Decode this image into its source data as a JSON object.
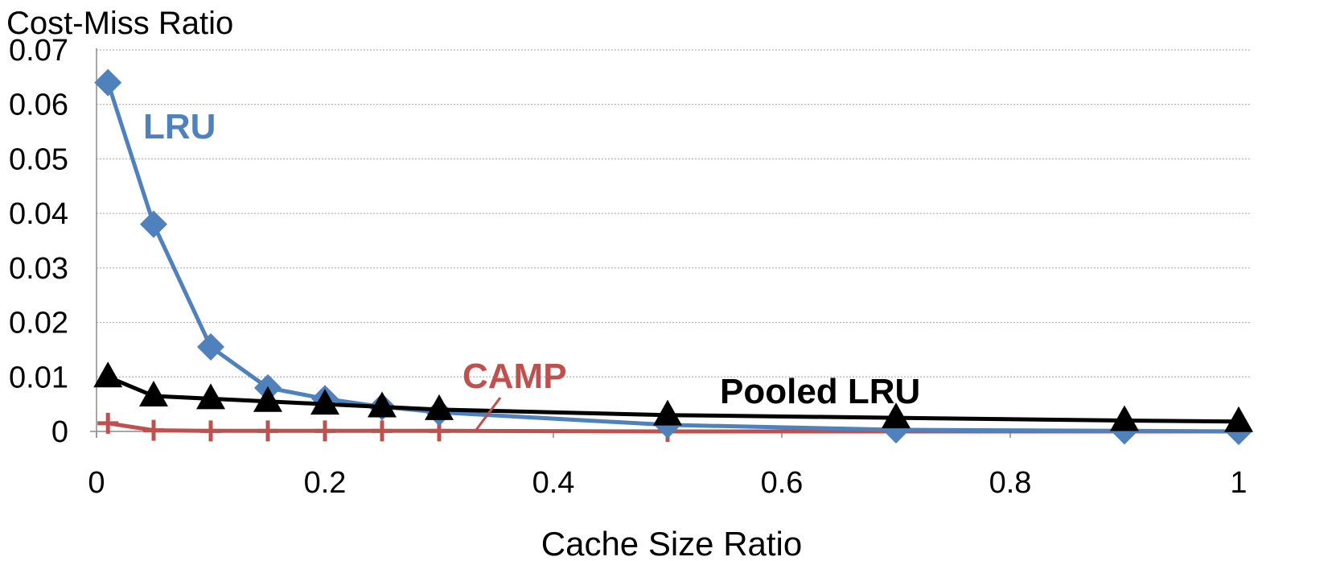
{
  "chart_data": {
    "type": "line",
    "title": "Cost-Miss Ratio",
    "xlabel": "Cache Size Ratio",
    "ylabel": "",
    "xlim": [
      0,
      1
    ],
    "ylim": [
      0,
      0.07
    ],
    "x_ticks": [
      "0",
      "0.2",
      "0.4",
      "0.6",
      "0.8",
      "1"
    ],
    "y_ticks": [
      "0",
      "0.01",
      "0.02",
      "0.03",
      "0.04",
      "0.05",
      "0.06",
      "0.07"
    ],
    "grid": true,
    "x": [
      0.01,
      0.05,
      0.1,
      0.15,
      0.2,
      0.25,
      0.3,
      0.5,
      0.7,
      0.9,
      1.0
    ],
    "series": [
      {
        "name": "LRU",
        "color": "#4f81bd",
        "marker": "diamond",
        "values": [
          0.064,
          0.038,
          0.0155,
          0.008,
          0.006,
          0.0045,
          0.0035,
          0.0012,
          0.0003,
          0.0001,
          0.0
        ]
      },
      {
        "name": "Pooled LRU",
        "color": "#000000",
        "marker": "triangle",
        "values": [
          0.01,
          0.0065,
          0.006,
          0.0055,
          0.005,
          0.0045,
          0.004,
          0.003,
          0.0025,
          0.002,
          0.0018
        ]
      },
      {
        "name": "CAMP",
        "color": "#c0504d",
        "marker": "plus",
        "values": [
          0.0015,
          0.0002,
          0.0001,
          0.0001,
          0.0001,
          0.0001,
          0.0001,
          0.0,
          0.0,
          0.0,
          0.0
        ]
      }
    ]
  }
}
